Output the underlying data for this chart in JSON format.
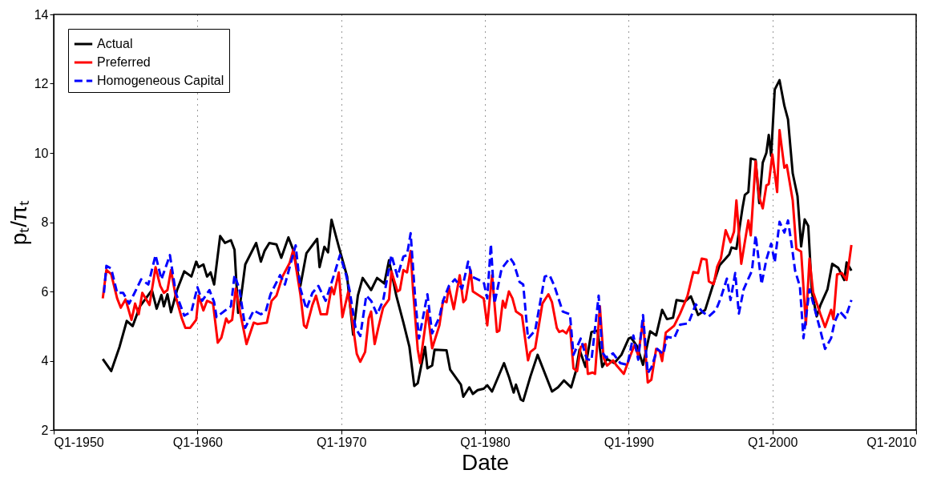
{
  "chart_data": {
    "type": "line",
    "xlabel": "Date",
    "ylabel": "pₜ/πₜ",
    "xlim": [
      "1950-01",
      "2010-01"
    ],
    "xticks": [
      {
        "value": "1950-01",
        "label": "Q1-1950"
      },
      {
        "value": "1960-01",
        "label": "Q1-1960"
      },
      {
        "value": "1970-01",
        "label": "Q1-1970"
      },
      {
        "value": "1980-01",
        "label": "Q1-1980"
      },
      {
        "value": "1990-01",
        "label": "Q1-1990"
      },
      {
        "value": "2000-01",
        "label": "Q1-2000"
      },
      {
        "value": "2010-01",
        "label": "Q1-2010"
      }
    ],
    "ylim": [
      2,
      14
    ],
    "yticks": [
      2,
      4,
      6,
      8,
      10,
      12,
      14
    ],
    "grid": "x",
    "legend": "top left",
    "series": [
      {
        "name": "Actual",
        "color": "#000000",
        "line_style": "solid",
        "x": [
          "1953-06",
          "1954-01",
          "1954-08",
          "1955-02",
          "1955-07",
          "1956-01",
          "1956-06",
          "1956-11",
          "1957-03",
          "1957-07",
          "1957-09",
          "1957-12",
          "1958-03",
          "1958-08",
          "1959-02",
          "1959-08",
          "1959-12",
          "1960-02",
          "1960-06",
          "1960-09",
          "1960-12",
          "1961-03",
          "1961-08",
          "1961-12",
          "1962-05",
          "1962-08",
          "1962-11",
          "1963-01",
          "1963-05",
          "1964-02",
          "1964-06",
          "1964-09",
          "1965-01",
          "1965-07",
          "1965-11",
          "1966-05",
          "1966-09",
          "1967-03",
          "1967-08",
          "1968-05",
          "1968-07",
          "1968-11",
          "1969-02",
          "1969-05",
          "1969-11",
          "1970-06",
          "1970-11",
          "1971-03",
          "1971-07",
          "1972-02",
          "1972-07",
          "1973-01",
          "1973-05",
          "1973-11",
          "1974-05",
          "1974-10",
          "1975-02",
          "1975-05",
          "1975-11",
          "1976-01",
          "1976-05",
          "1976-07",
          "1977-05",
          "1977-08",
          "1978-05",
          "1978-07",
          "1978-12",
          "1979-03",
          "1979-07",
          "1979-12",
          "1980-03",
          "1980-07",
          "1981-05",
          "1981-09",
          "1982-01",
          "1982-03",
          "1982-07",
          "1982-09",
          "1983-03",
          "1983-09",
          "1984-09",
          "1985-02",
          "1985-07",
          "1986-01",
          "1986-05",
          "1986-08",
          "1987-01",
          "1987-06",
          "1987-11",
          "1988-03",
          "1988-07",
          "1989-01",
          "1989-07",
          "1990-01",
          "1990-03",
          "1990-08",
          "1991-01",
          "1991-07",
          "1991-12",
          "1992-05",
          "1992-09",
          "1993-02",
          "1993-05",
          "1993-12",
          "1994-05",
          "1994-11",
          "1995-05",
          "1995-11",
          "1996-05",
          "1997-01",
          "1997-03",
          "1997-07",
          "1997-12",
          "1998-02",
          "1998-05",
          "1998-07",
          "1998-11",
          "1999-02",
          "1999-05",
          "1999-08",
          "1999-10",
          "1999-12",
          "2000-03",
          "2000-07",
          "2000-11",
          "2001-02",
          "2001-06",
          "2001-10",
          "2002-01",
          "2002-04",
          "2002-07",
          "2002-10",
          "2003-02",
          "2003-05",
          "2003-11",
          "2004-03",
          "2004-08",
          "2005-01",
          "2005-03",
          "2005-07"
        ],
        "values": [
          4.05,
          3.7,
          4.4,
          5.15,
          5.0,
          5.57,
          5.8,
          6.04,
          5.5,
          5.9,
          5.57,
          5.92,
          5.4,
          6.04,
          6.58,
          6.43,
          6.86,
          6.7,
          6.78,
          6.43,
          6.55,
          6.2,
          7.6,
          7.4,
          7.48,
          7.2,
          5.38,
          5.73,
          6.78,
          7.4,
          6.86,
          7.17,
          7.4,
          7.36,
          6.97,
          7.56,
          7.2,
          6.16,
          7.1,
          7.52,
          6.7,
          7.29,
          7.13,
          8.07,
          7.29,
          6.43,
          4.75,
          5.88,
          6.39,
          6.04,
          6.39,
          6.23,
          6.9,
          5.88,
          5.1,
          4.4,
          3.27,
          3.35,
          4.4,
          3.78,
          3.86,
          4.32,
          4.3,
          3.74,
          3.31,
          2.96,
          3.23,
          3.04,
          3.15,
          3.19,
          3.29,
          3.11,
          3.93,
          3.54,
          3.08,
          3.31,
          2.88,
          2.84,
          3.54,
          4.17,
          3.11,
          3.23,
          3.43,
          3.23,
          3.7,
          4.32,
          3.82,
          4.83,
          4.87,
          3.82,
          4.05,
          3.93,
          4.17,
          4.64,
          4.67,
          4.42,
          3.88,
          4.85,
          4.73,
          5.47,
          5.2,
          5.24,
          5.75,
          5.71,
          5.86,
          5.32,
          5.47,
          6.14,
          6.76,
          7.07,
          7.27,
          7.23,
          8.4,
          8.79,
          8.87,
          9.84,
          9.8,
          8.55,
          9.72,
          10.0,
          10.52,
          9.92,
          11.83,
          12.1,
          11.36,
          10.97,
          9.41,
          8.75,
          7.3,
          8.08,
          7.89,
          5.98,
          5.28,
          5.59,
          6.06,
          6.8,
          6.68,
          6.33,
          6.84,
          6.6
        ]
      },
      {
        "name": "Preferred",
        "color": "#ff0000",
        "line_style": "solid",
        "x": [
          "1953-06",
          "1953-09",
          "1954-01",
          "1954-06",
          "1954-09",
          "1955-01",
          "1955-06",
          "1955-09",
          "1955-12",
          "1956-03",
          "1956-09",
          "1957-02",
          "1957-06",
          "1957-09",
          "1957-12",
          "1958-03",
          "1958-07",
          "1958-12",
          "1959-03",
          "1959-07",
          "1959-12",
          "1960-02",
          "1960-06",
          "1960-09",
          "1961-02",
          "1961-06",
          "1961-09",
          "1962-01",
          "1962-03",
          "1962-06",
          "1962-09",
          "1963-01",
          "1963-06",
          "1963-12",
          "1964-03",
          "1964-11",
          "1965-03",
          "1965-07",
          "1965-12",
          "1966-06",
          "1966-09",
          "1967-03",
          "1967-06",
          "1967-08",
          "1968-01",
          "1968-04",
          "1968-08",
          "1969-01",
          "1969-05",
          "1969-07",
          "1969-11",
          "1970-02",
          "1970-07",
          "1971-02",
          "1971-05",
          "1971-09",
          "1971-12",
          "1972-02",
          "1972-05",
          "1972-08",
          "1972-12",
          "1973-05",
          "1973-07",
          "1973-12",
          "1974-02",
          "1974-05",
          "1974-08",
          "1974-11",
          "1975-01",
          "1975-05",
          "1975-07",
          "1976-01",
          "1976-05",
          "1976-11",
          "1977-02",
          "1977-05",
          "1977-07",
          "1977-11",
          "1978-04",
          "1978-07",
          "1978-09",
          "1979-01",
          "1979-03",
          "1979-12",
          "1980-03",
          "1980-07",
          "1980-11",
          "1981-01",
          "1981-04",
          "1981-06",
          "1981-09",
          "1981-12",
          "1982-03",
          "1982-08",
          "1983-01",
          "1983-03",
          "1983-07",
          "1984-01",
          "1984-06",
          "1984-09",
          "1985-01",
          "1985-03",
          "1985-06",
          "1985-09",
          "1985-12",
          "1986-03",
          "1986-06",
          "1986-09",
          "1987-01",
          "1987-03",
          "1987-07",
          "1987-09",
          "1988-01",
          "1988-04",
          "1988-07",
          "1988-12",
          "1989-03",
          "1989-09",
          "1990-02",
          "1990-06",
          "1990-09",
          "1991-01",
          "1991-05",
          "1991-08",
          "1991-12",
          "1992-03",
          "1992-05",
          "1992-08",
          "1993-03",
          "1993-08",
          "1994-02",
          "1994-07",
          "1994-11",
          "1995-02",
          "1995-06",
          "1995-08",
          "1995-12",
          "1996-03",
          "1996-06",
          "1996-10",
          "1997-02",
          "1997-05",
          "1997-07",
          "1997-11",
          "1998-05",
          "1998-07",
          "1998-11",
          "1999-02",
          "1999-05",
          "1999-08",
          "1999-10",
          "2000-01",
          "2000-05",
          "2000-07",
          "2000-11",
          "2001-01",
          "2001-06",
          "2001-09",
          "2002-01",
          "2002-05",
          "2002-08",
          "2002-11",
          "2003-05",
          "2003-09",
          "2004-02",
          "2004-04",
          "2004-07",
          "2004-11",
          "2005-03",
          "2005-07"
        ],
        "values": [
          5.8,
          6.62,
          6.5,
          5.8,
          5.53,
          5.77,
          5.18,
          5.65,
          5.34,
          5.96,
          5.61,
          6.7,
          6.16,
          5.96,
          6.04,
          6.62,
          5.84,
          5.22,
          4.95,
          4.95,
          5.18,
          5.88,
          5.45,
          5.73,
          5.65,
          4.52,
          4.67,
          5.22,
          5.1,
          5.18,
          6.08,
          5.34,
          4.48,
          5.1,
          5.06,
          5.1,
          5.73,
          5.88,
          6.43,
          6.82,
          7.2,
          5.92,
          5.02,
          4.95,
          5.61,
          5.88,
          5.34,
          5.34,
          6.12,
          5.92,
          6.55,
          5.26,
          6.0,
          4.2,
          3.97,
          4.25,
          5.22,
          5.42,
          4.48,
          4.95,
          5.53,
          5.77,
          6.58,
          6.0,
          6.04,
          6.62,
          6.55,
          7.17,
          6.04,
          4.32,
          3.93,
          5.45,
          4.36,
          5.02,
          5.73,
          5.69,
          6.12,
          5.49,
          6.47,
          5.69,
          5.77,
          6.62,
          6.0,
          5.8,
          5.02,
          6.47,
          4.83,
          4.87,
          5.73,
          5.53,
          6.0,
          5.8,
          5.42,
          5.3,
          4.01,
          4.25,
          4.36,
          5.65,
          5.92,
          5.69,
          4.95,
          4.83,
          4.87,
          4.79,
          4.99,
          3.78,
          3.7,
          4.4,
          4.48,
          3.62,
          3.66,
          3.62,
          5.57,
          4.09,
          3.86,
          4.01,
          3.86,
          3.62,
          4.11,
          4.46,
          4.15,
          5.16,
          3.37,
          3.45,
          4.34,
          4.27,
          3.99,
          4.81,
          5.01,
          5.36,
          5.86,
          6.56,
          6.53,
          6.95,
          6.92,
          6.29,
          6.21,
          6.72,
          6.95,
          7.77,
          7.42,
          7.73,
          8.63,
          6.8,
          8.05,
          7.62,
          9.76,
          8.71,
          8.4,
          9.06,
          9.1,
          9.96,
          8.87,
          10.66,
          9.57,
          9.65,
          8.63,
          7.23,
          7.15,
          5.04,
          6.95,
          5.98,
          5.36,
          4.97,
          5.47,
          5.2,
          6.49,
          6.53,
          6.33,
          7.34
        ]
      },
      {
        "name": "Homogeneous Capital",
        "color": "#0000ff",
        "line_style": "dashed",
        "x": [
          "1953-07",
          "1953-09",
          "1954-01",
          "1954-06",
          "1954-11",
          "1955-04",
          "1955-08",
          "1956-02",
          "1956-08",
          "1957-02",
          "1957-07",
          "1958-02",
          "1958-07",
          "1959-02",
          "1959-08",
          "1960-01",
          "1960-05",
          "1960-11",
          "1961-03",
          "1961-05",
          "1961-11",
          "1962-05",
          "1962-08",
          "1962-12",
          "1963-05",
          "1963-12",
          "1964-06",
          "1964-10",
          "1965-02",
          "1965-10",
          "1966-02",
          "1966-11",
          "1967-03",
          "1967-08",
          "1968-01",
          "1968-06",
          "1968-12",
          "1969-03",
          "1969-08",
          "1969-12",
          "1970-05",
          "1970-08",
          "1971-01",
          "1971-05",
          "1971-10",
          "1972-02",
          "1972-07",
          "1972-12",
          "1973-07",
          "1973-12",
          "1974-05",
          "1974-08",
          "1974-11",
          "1975-03",
          "1975-06",
          "1976-01",
          "1976-05",
          "1976-11",
          "1977-02",
          "1977-07",
          "1977-12",
          "1978-06",
          "1978-11",
          "1979-02",
          "1979-12",
          "1980-03",
          "1980-06",
          "1980-09",
          "1981-03",
          "1981-10",
          "1982-01",
          "1982-06",
          "1982-09",
          "1983-01",
          "1983-07",
          "1984-03",
          "1984-07",
          "1984-11",
          "1985-06",
          "1985-12",
          "1986-03",
          "1986-09",
          "1987-02",
          "1987-06",
          "1987-12",
          "1988-03",
          "1988-06",
          "1988-12",
          "1989-06",
          "1989-12",
          "1990-05",
          "1990-09",
          "1991-01",
          "1991-05",
          "1991-08",
          "1992-01",
          "1992-06",
          "1992-09",
          "1993-03",
          "1993-08",
          "1994-03",
          "1994-09",
          "1995-03",
          "1995-08",
          "1996-02",
          "1996-06",
          "1996-11",
          "1997-02",
          "1997-06",
          "1997-09",
          "1998-01",
          "1998-05",
          "1998-08",
          "1998-11",
          "1999-01",
          "1999-04",
          "1999-08",
          "1999-12",
          "2000-03",
          "2000-07",
          "2000-11",
          "2001-02",
          "2001-05",
          "2001-08",
          "2001-12",
          "2002-03",
          "2002-08",
          "2002-11",
          "2003-05",
          "2003-09",
          "2004-02",
          "2004-05",
          "2004-09",
          "2005-02",
          "2005-07"
        ],
        "values": [
          5.96,
          6.74,
          6.66,
          5.96,
          5.96,
          5.65,
          5.92,
          6.35,
          6.2,
          7.05,
          6.35,
          7.05,
          5.96,
          5.3,
          5.42,
          6.12,
          5.73,
          6.04,
          5.69,
          5.26,
          5.42,
          5.57,
          6.47,
          6.08,
          4.95,
          5.45,
          5.34,
          5.42,
          5.92,
          6.47,
          6.2,
          7.33,
          6.08,
          5.49,
          5.96,
          6.16,
          5.73,
          6.04,
          6.58,
          7.05,
          6.5,
          6.04,
          4.95,
          4.71,
          5.88,
          5.73,
          5.34,
          5.73,
          7.05,
          6.43,
          7.01,
          7.05,
          7.68,
          5.73,
          4.64,
          5.92,
          4.79,
          5.26,
          5.73,
          6.16,
          6.35,
          6.08,
          6.86,
          6.43,
          6.27,
          5.8,
          7.36,
          5.65,
          6.66,
          6.97,
          6.82,
          6.27,
          6.2,
          4.64,
          4.87,
          6.43,
          6.47,
          6.16,
          5.42,
          5.34,
          4.17,
          4.64,
          4.05,
          4.01,
          5.88,
          4.25,
          4.09,
          4.21,
          3.93,
          3.88,
          4.73,
          4.03,
          5.32,
          3.64,
          3.8,
          4.34,
          4.19,
          4.69,
          4.65,
          5.04,
          5.08,
          5.63,
          5.4,
          5.28,
          5.47,
          5.82,
          6.37,
          5.75,
          6.53,
          5.36,
          6.06,
          6.37,
          6.6,
          7.62,
          7.07,
          6.21,
          6.92,
          7.38,
          6.84,
          8.01,
          7.7,
          8.05,
          7.38,
          6.6,
          6.14,
          4.65,
          6.06,
          5.67,
          4.89,
          4.34,
          4.65,
          5.12,
          5.43,
          5.24,
          5.75
        ]
      }
    ]
  }
}
